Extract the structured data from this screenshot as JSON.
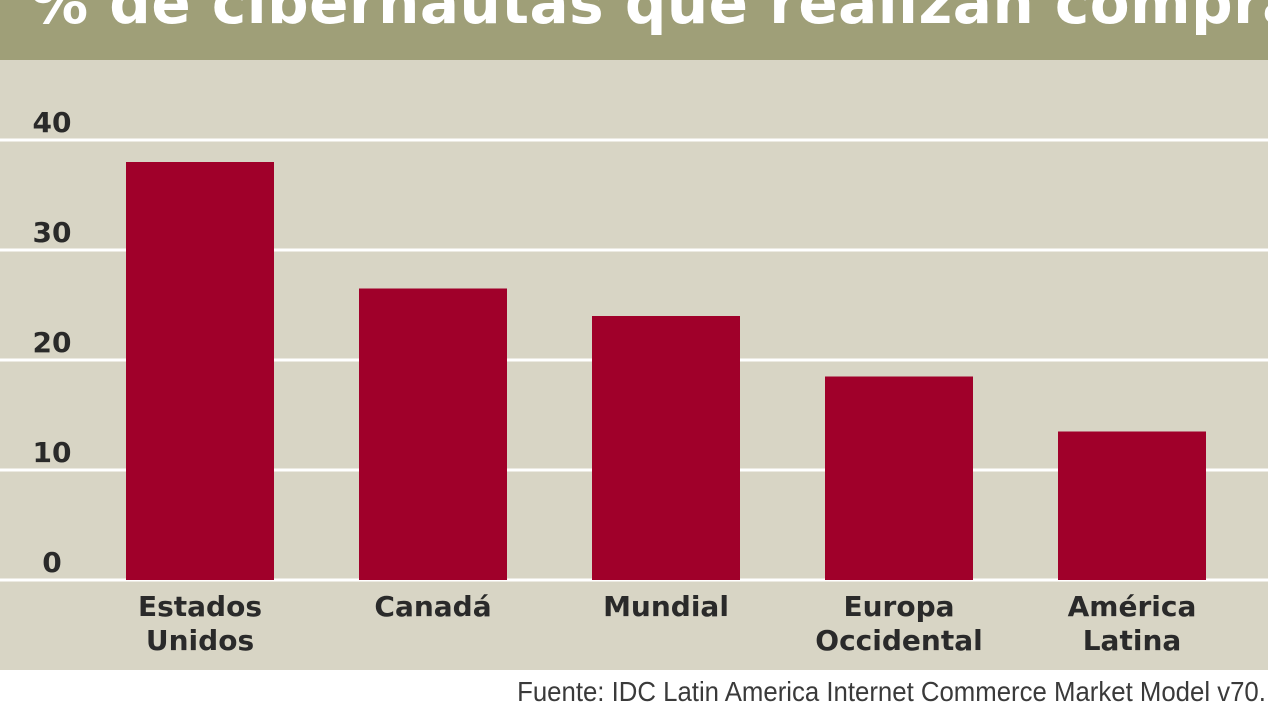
{
  "chart_data": {
    "type": "bar",
    "title": "% de cibernautas que realizan compras en línea",
    "categories": [
      [
        "Estados",
        "Unidos"
      ],
      [
        "Canadá"
      ],
      [
        "Mundial"
      ],
      [
        "Europa",
        "Occidental"
      ],
      [
        "América",
        "Latina"
      ]
    ],
    "values": [
      38,
      26.5,
      24,
      18.5,
      13.5
    ],
    "yticks": [
      0,
      10,
      20,
      30,
      40
    ],
    "ylim": [
      0,
      40
    ],
    "grid": true,
    "source": "Fuente: IDC Latin America Internet Commerce Market Model v70."
  },
  "colors": {
    "bar": "#a0002a",
    "title_band": "#9f9f78",
    "plot_background": "#d8d5c5",
    "gridline": "#ffffff",
    "title_text": "#ffffff",
    "label_text": "#2a2a2a"
  }
}
